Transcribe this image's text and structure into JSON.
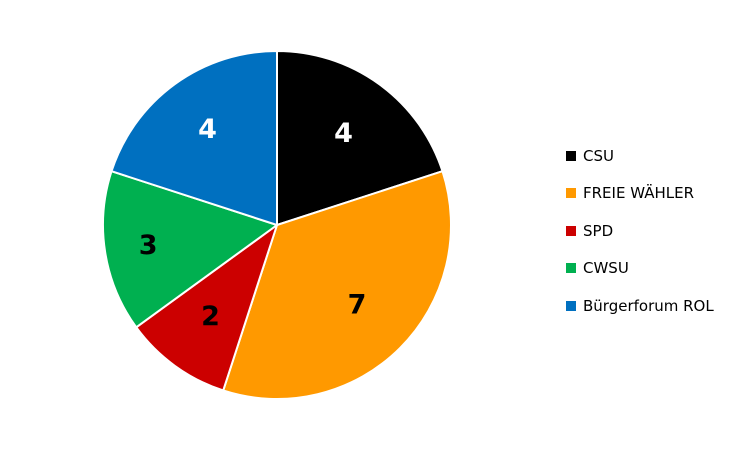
{
  "chart_data": {
    "type": "pie",
    "categories": [
      "CSU",
      "FREIE WÄHLER",
      "SPD",
      "CWSU",
      "Bürgerforum ROL"
    ],
    "values": [
      4,
      7,
      2,
      3,
      4
    ],
    "value_labels": [
      "4",
      "7",
      "2",
      "3",
      "4"
    ],
    "colors": [
      "#000000",
      "#FF9900",
      "#CC0000",
      "#00B050",
      "#0070C0"
    ],
    "label_colors": [
      "#FFFFFF",
      "#000000",
      "#000000",
      "#000000",
      "#FFFFFF"
    ],
    "start_angle": "12 o'clock",
    "direction": "clockwise",
    "legend_position": "right"
  }
}
